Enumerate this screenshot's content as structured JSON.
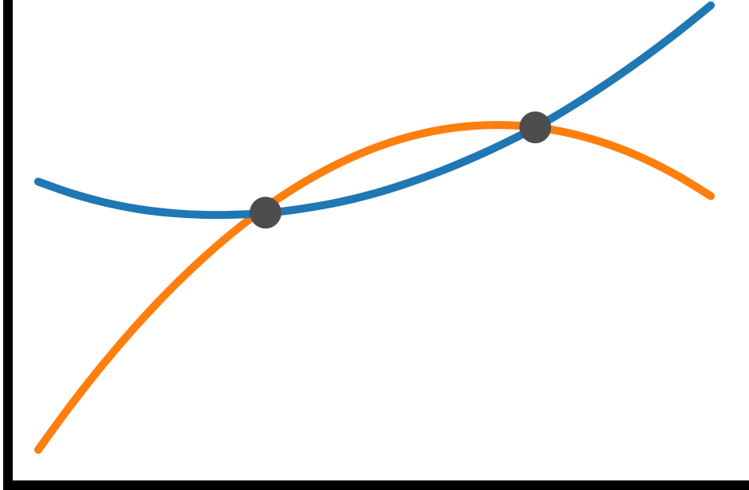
{
  "chart_data": {
    "type": "line",
    "title": "",
    "xlabel": "",
    "ylabel": "",
    "xlim": [
      0,
      10
    ],
    "ylim": [
      0,
      10
    ],
    "grid": false,
    "legend": "none",
    "axes_visible": [
      "left",
      "bottom"
    ],
    "ticks": false,
    "series": [
      {
        "color": "#1f77b4",
        "x": [
          0.0,
          0.5,
          1.0,
          1.5,
          2.0,
          2.5,
          3.0,
          3.5,
          4.0,
          4.5,
          5.0,
          5.5,
          6.0,
          6.5,
          7.0,
          7.5,
          8.0,
          8.5,
          9.0,
          9.5,
          10.0
        ],
        "y": [
          6.43,
          6.16,
          5.95,
          5.8,
          5.71,
          5.67,
          5.68,
          5.73,
          5.83,
          5.97,
          6.16,
          6.4,
          6.68,
          7.0,
          7.36,
          7.76,
          8.22,
          8.72,
          9.26,
          9.84,
          10.46
        ]
      },
      {
        "color": "#ff7f0e",
        "x": [
          0.0,
          0.5,
          1.0,
          1.5,
          2.0,
          2.5,
          3.0,
          3.5,
          4.0,
          4.5,
          5.0,
          5.5,
          6.0,
          6.5,
          7.0,
          7.5,
          8.0,
          8.5,
          9.0,
          9.5,
          10.0
        ],
        "y": [
          0.3,
          1.35,
          2.32,
          3.21,
          4.02,
          4.75,
          5.4,
          5.97,
          6.46,
          6.87,
          7.2,
          7.45,
          7.62,
          7.71,
          7.72,
          7.65,
          7.5,
          7.27,
          6.96,
          6.57,
          6.1
        ]
      }
    ],
    "markers": [
      {
        "x": 3.38,
        "y": 5.72,
        "color": "#4d4d4d"
      },
      {
        "x": 7.39,
        "y": 7.67,
        "color": "#4d4d4d"
      }
    ]
  }
}
